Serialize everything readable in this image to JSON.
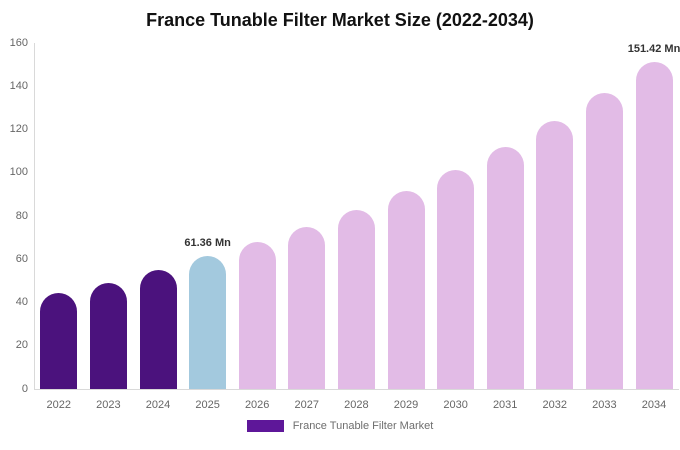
{
  "title": "France Tunable Filter Market Size (2022-2034)",
  "colors": {
    "historical_bar": "#4b127d",
    "current_bar": "#a3c9de",
    "forecast_bar": "#e2bbe6",
    "legend_swatch": "#5e1799",
    "title_text": "#111111",
    "axis_text": "#666666",
    "annotation_text": "#333333",
    "legend_text": "#6e6e6e",
    "axis_line": "#d9d9d9",
    "background": "#ffffff"
  },
  "chart_data": {
    "type": "bar",
    "title": "France Tunable Filter Market Size (2022-2034)",
    "categories": [
      "2022",
      "2023",
      "2024",
      "2025",
      "2026",
      "2027",
      "2028",
      "2029",
      "2030",
      "2031",
      "2032",
      "2033",
      "2034"
    ],
    "series": [
      {
        "name": "France Tunable Filter Market",
        "values": [
          44.4,
          49.2,
          54.9,
          61.36,
          67.8,
          75.0,
          82.9,
          91.6,
          101.3,
          112.0,
          123.8,
          136.9,
          151.42
        ]
      }
    ],
    "unit": "Mn",
    "point_colors": [
      "#4b127d",
      "#4b127d",
      "#4b127d",
      "#a3c9de",
      "#e2bbe6",
      "#e2bbe6",
      "#e2bbe6",
      "#e2bbe6",
      "#e2bbe6",
      "#e2bbe6",
      "#e2bbe6",
      "#e2bbe6",
      "#e2bbe6"
    ],
    "data_labels": [
      {
        "category": "2025",
        "text": "61.36 Mn"
      },
      {
        "category": "2034",
        "text": "151.42 Mn"
      }
    ],
    "xlabel": "",
    "ylabel": "",
    "ylim": [
      0,
      160
    ],
    "yticks": [
      0,
      20,
      40,
      60,
      80,
      100,
      120,
      140,
      160
    ],
    "grid": false,
    "legend_position": "bottom"
  },
  "legend": {
    "label": "France Tunable Filter Market"
  }
}
